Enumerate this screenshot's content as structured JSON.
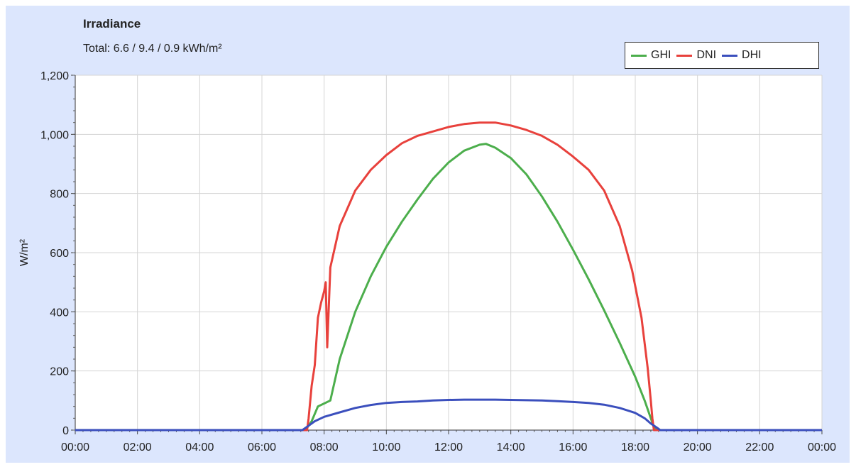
{
  "chart_data": {
    "type": "line",
    "title": "Irradiance",
    "subtitle": "Total: 6.6 / 9.4 / 0.9 kWh/m²",
    "xlabel": "",
    "ylabel": "W/m²",
    "xlim": [
      0,
      24
    ],
    "ylim": [
      0,
      1200
    ],
    "x_tick_labels": [
      "00:00",
      "02:00",
      "04:00",
      "06:00",
      "08:00",
      "10:00",
      "12:00",
      "14:00",
      "16:00",
      "18:00",
      "20:00",
      "22:00",
      "00:00"
    ],
    "y_tick_values": [
      0,
      200,
      400,
      600,
      800,
      1000,
      1200
    ],
    "y_tick_labels": [
      "0",
      "200",
      "400",
      "600",
      "800",
      "1,000",
      "1,200"
    ],
    "grid": true,
    "legend_position": "top-right",
    "series": [
      {
        "name": "GHI",
        "color": "#4cae4c",
        "points": [
          [
            0,
            0
          ],
          [
            7.4,
            0
          ],
          [
            7.6,
            30
          ],
          [
            7.8,
            80
          ],
          [
            8.0,
            90
          ],
          [
            8.2,
            100
          ],
          [
            8.5,
            240
          ],
          [
            9.0,
            400
          ],
          [
            9.5,
            520
          ],
          [
            10.0,
            620
          ],
          [
            10.5,
            705
          ],
          [
            11.0,
            780
          ],
          [
            11.5,
            850
          ],
          [
            12.0,
            905
          ],
          [
            12.5,
            945
          ],
          [
            13.0,
            965
          ],
          [
            13.2,
            968
          ],
          [
            13.5,
            955
          ],
          [
            14.0,
            920
          ],
          [
            14.5,
            865
          ],
          [
            15.0,
            790
          ],
          [
            15.5,
            705
          ],
          [
            16.0,
            610
          ],
          [
            16.5,
            510
          ],
          [
            17.0,
            405
          ],
          [
            17.5,
            295
          ],
          [
            18.0,
            180
          ],
          [
            18.3,
            100
          ],
          [
            18.5,
            40
          ],
          [
            18.6,
            10
          ],
          [
            18.7,
            0
          ],
          [
            24,
            0
          ]
        ]
      },
      {
        "name": "DNI",
        "color": "#e8413c",
        "points": [
          [
            0,
            0
          ],
          [
            7.45,
            0
          ],
          [
            7.5,
            40
          ],
          [
            7.6,
            150
          ],
          [
            7.7,
            220
          ],
          [
            7.8,
            380
          ],
          [
            7.9,
            430
          ],
          [
            8.0,
            470
          ],
          [
            8.05,
            500
          ],
          [
            8.1,
            280
          ],
          [
            8.2,
            550
          ],
          [
            8.5,
            690
          ],
          [
            9.0,
            810
          ],
          [
            9.5,
            880
          ],
          [
            10.0,
            930
          ],
          [
            10.5,
            970
          ],
          [
            11.0,
            995
          ],
          [
            11.5,
            1010
          ],
          [
            12.0,
            1025
          ],
          [
            12.5,
            1035
          ],
          [
            13.0,
            1040
          ],
          [
            13.5,
            1040
          ],
          [
            14.0,
            1030
          ],
          [
            14.5,
            1015
          ],
          [
            15.0,
            995
          ],
          [
            15.5,
            965
          ],
          [
            16.0,
            925
          ],
          [
            16.5,
            880
          ],
          [
            17.0,
            810
          ],
          [
            17.5,
            690
          ],
          [
            17.9,
            540
          ],
          [
            18.2,
            380
          ],
          [
            18.4,
            210
          ],
          [
            18.5,
            100
          ],
          [
            18.55,
            40
          ],
          [
            18.6,
            0
          ],
          [
            24,
            0
          ]
        ]
      },
      {
        "name": "DHI",
        "color": "#3b4fbd",
        "points": [
          [
            0,
            0
          ],
          [
            7.3,
            0
          ],
          [
            7.5,
            15
          ],
          [
            7.7,
            30
          ],
          [
            8.0,
            45
          ],
          [
            8.5,
            60
          ],
          [
            9.0,
            75
          ],
          [
            9.5,
            85
          ],
          [
            10.0,
            92
          ],
          [
            10.5,
            95
          ],
          [
            11.0,
            97
          ],
          [
            11.5,
            100
          ],
          [
            12.0,
            102
          ],
          [
            12.5,
            103
          ],
          [
            13.0,
            103
          ],
          [
            13.5,
            103
          ],
          [
            14.0,
            102
          ],
          [
            14.5,
            101
          ],
          [
            15.0,
            100
          ],
          [
            15.5,
            98
          ],
          [
            16.0,
            95
          ],
          [
            16.5,
            92
          ],
          [
            17.0,
            86
          ],
          [
            17.5,
            75
          ],
          [
            18.0,
            58
          ],
          [
            18.3,
            40
          ],
          [
            18.5,
            22
          ],
          [
            18.7,
            8
          ],
          [
            18.8,
            0
          ],
          [
            24,
            0
          ]
        ]
      }
    ]
  }
}
